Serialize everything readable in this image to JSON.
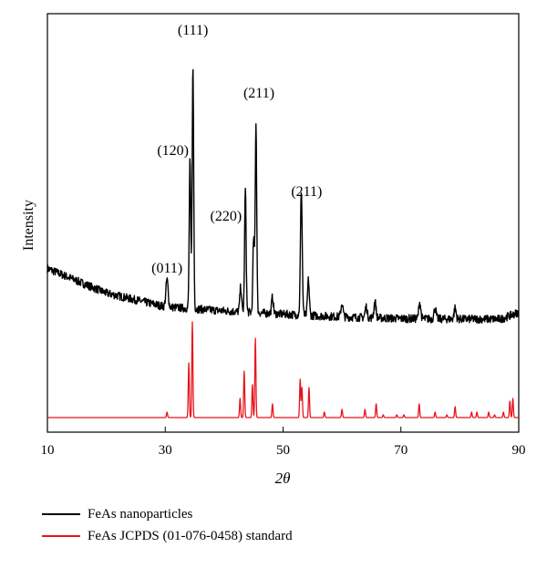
{
  "chart_data": {
    "type": "line",
    "title": "",
    "xlabel": "2θ",
    "ylabel": "Intensity",
    "xlim": [
      10,
      90
    ],
    "xticks": [
      10,
      30,
      50,
      70,
      90
    ],
    "yticks_shown": false,
    "grid": false,
    "legend_position": "bottom",
    "series": [
      {
        "name": "FeAs nanoparticles",
        "color": "#000000",
        "kind": "pattern",
        "baseline": [
          [
            10,
            0.545
          ],
          [
            20,
            0.455
          ],
          [
            30,
            0.405
          ],
          [
            40,
            0.39
          ],
          [
            50,
            0.378
          ],
          [
            60,
            0.368
          ],
          [
            70,
            0.362
          ],
          [
            80,
            0.36
          ],
          [
            87,
            0.36
          ],
          [
            90,
            0.385
          ]
        ],
        "noise": 0.03,
        "peaks": [
          {
            "x": 30.3,
            "height": 0.1,
            "width": 0.45
          },
          {
            "x": 34.2,
            "height": 0.54,
            "width": 0.3
          },
          {
            "x": 34.7,
            "height": 0.88,
            "width": 0.3
          },
          {
            "x": 42.8,
            "height": 0.09,
            "width": 0.35
          },
          {
            "x": 43.6,
            "height": 0.45,
            "width": 0.3
          },
          {
            "x": 45.0,
            "height": 0.27,
            "width": 0.3
          },
          {
            "x": 45.4,
            "height": 0.69,
            "width": 0.3
          },
          {
            "x": 48.2,
            "height": 0.06,
            "width": 0.35
          },
          {
            "x": 53.1,
            "height": 0.46,
            "width": 0.35
          },
          {
            "x": 54.3,
            "height": 0.13,
            "width": 0.35
          },
          {
            "x": 60.0,
            "height": 0.05,
            "width": 0.4
          },
          {
            "x": 64.1,
            "height": 0.04,
            "width": 0.4
          },
          {
            "x": 65.6,
            "height": 0.06,
            "width": 0.4
          },
          {
            "x": 73.2,
            "height": 0.06,
            "width": 0.4
          },
          {
            "x": 75.8,
            "height": 0.04,
            "width": 0.4
          },
          {
            "x": 79.2,
            "height": 0.04,
            "width": 0.4
          }
        ]
      },
      {
        "name": "FeAs JCPDS (01-076-0458) standard",
        "color": "#e8141c",
        "kind": "sticks",
        "baseline": [
          [
            10,
            0.0
          ],
          [
            90,
            0.0
          ]
        ],
        "sticks": [
          [
            30.3,
            0.02
          ],
          [
            34.0,
            0.2
          ],
          [
            34.6,
            0.35
          ],
          [
            42.7,
            0.07
          ],
          [
            43.4,
            0.17
          ],
          [
            44.8,
            0.12
          ],
          [
            45.3,
            0.29
          ],
          [
            48.2,
            0.05
          ],
          [
            52.9,
            0.14
          ],
          [
            53.2,
            0.11
          ],
          [
            54.4,
            0.11
          ],
          [
            57.0,
            0.02
          ],
          [
            60.0,
            0.03
          ],
          [
            63.9,
            0.03
          ],
          [
            65.8,
            0.05
          ],
          [
            67.0,
            0.01
          ],
          [
            69.3,
            0.01
          ],
          [
            70.5,
            0.01
          ],
          [
            73.1,
            0.05
          ],
          [
            75.8,
            0.02
          ],
          [
            77.8,
            0.01
          ],
          [
            79.2,
            0.04
          ],
          [
            82.0,
            0.02
          ],
          [
            82.9,
            0.02
          ],
          [
            84.9,
            0.02
          ],
          [
            85.9,
            0.01
          ],
          [
            87.4,
            0.02
          ],
          [
            88.5,
            0.06
          ],
          [
            89.0,
            0.07
          ]
        ]
      }
    ],
    "annotations": [
      {
        "text": "(011)",
        "x": 30.3,
        "y": 0.53
      },
      {
        "text": "(120)",
        "x": 31.3,
        "y": 0.96
      },
      {
        "text": "(111)",
        "x": 34.7,
        "y": 1.4
      },
      {
        "text": "(220)",
        "x": 40.3,
        "y": 0.72
      },
      {
        "text": "(211)",
        "x": 45.9,
        "y": 1.17
      },
      {
        "text": "(211)",
        "x": 54.0,
        "y": 0.81
      }
    ]
  }
}
